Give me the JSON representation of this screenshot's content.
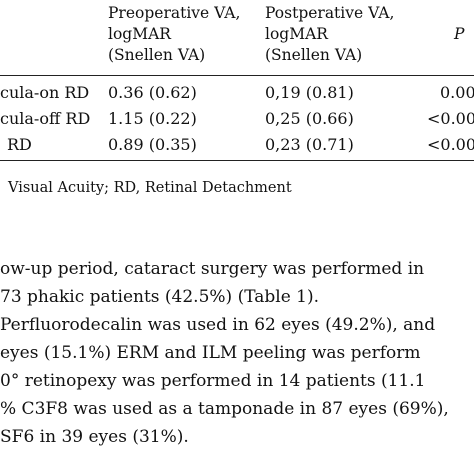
{
  "table": {
    "headers": {
      "pre": [
        "Preoperative VA,",
        "logMAR",
        "(Snellen VA)"
      ],
      "post": [
        "Postperative VA,",
        "logMAR",
        "(Snellen VA)"
      ],
      "p": "P"
    },
    "rows": [
      {
        "label": "cula-on RD",
        "pre": "0.36 (0.62)",
        "post": "0,19 (0.81)",
        "p": "0.00"
      },
      {
        "label": "cula-off RD",
        "pre": "1.15 (0.22)",
        "post": "0,25 (0.66)",
        "p": "<0.00"
      },
      {
        "label": "RD",
        "pre": "0.89 (0.35)",
        "post": "0,23 (0.71)",
        "p": "<0.00"
      }
    ]
  },
  "footnote": "Visual Acuity; RD, Retinal Detachment",
  "body": [
    "ow-up period, cataract surgery was performed in",
    "73 phakic patients (42.5%) (Table 1).",
    "Perfluorodecalin was used in 62 eyes (49.2%), and",
    "eyes (15.1%) ERM and ILM peeling was perform",
    "0° retinopexy was performed in 14 patients (11.1",
    "% C3F8 was used as a tamponade in 87 eyes (69%),",
    "SF6 in 39 eyes (31%)."
  ]
}
